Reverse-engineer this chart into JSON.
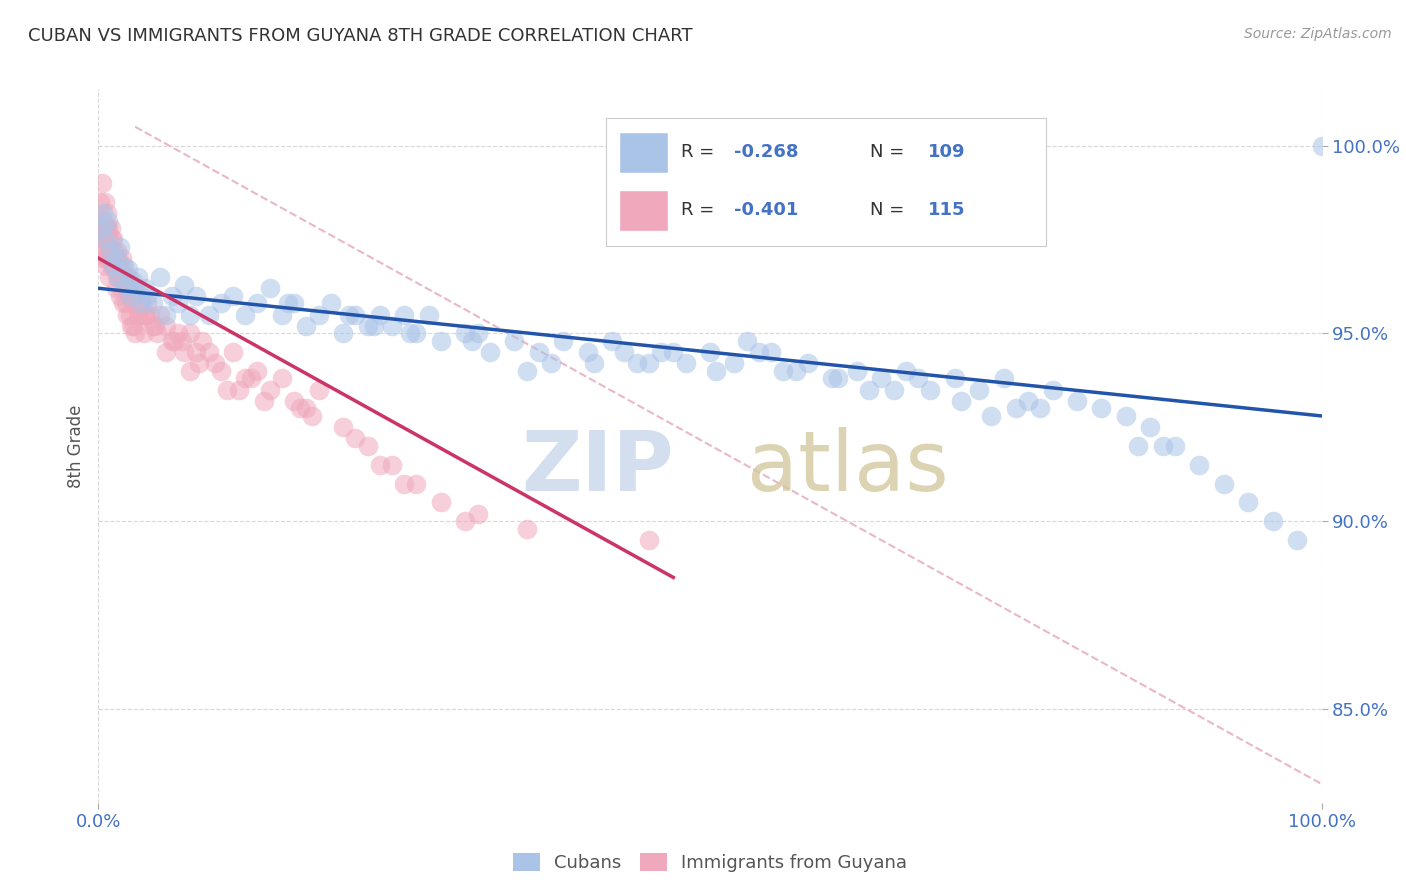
{
  "title": "CUBAN VS IMMIGRANTS FROM GUYANA 8TH GRADE CORRELATION CHART",
  "source": "Source: ZipAtlas.com",
  "ylabel": "8th Grade",
  "ytick_labels": [
    "85.0%",
    "90.0%",
    "95.0%",
    "100.0%"
  ],
  "ytick_values": [
    85.0,
    90.0,
    95.0,
    100.0
  ],
  "legend_label_blue": "Cubans",
  "legend_label_pink": "Immigrants from Guyana",
  "blue_color": "#aac4e8",
  "pink_color": "#f0a8bc",
  "blue_line_color": "#2255aa",
  "pink_line_color": "#cc3366",
  "diag_line_color": "#e8b0c0",
  "xlim": [
    0.0,
    100.0
  ],
  "ylim": [
    82.5,
    101.5
  ],
  "blue_trend_x": [
    0.0,
    100.0
  ],
  "blue_trend_y": [
    96.2,
    92.8
  ],
  "pink_trend_x": [
    0.0,
    47.0
  ],
  "pink_trend_y": [
    97.0,
    88.5
  ],
  "diag_trend_x": [
    3.0,
    100.0
  ],
  "diag_trend_y": [
    100.5,
    83.0
  ],
  "blue_scatter_x": [
    0.3,
    0.4,
    0.6,
    0.8,
    1.0,
    1.2,
    1.4,
    1.6,
    1.8,
    2.0,
    2.2,
    2.4,
    2.6,
    2.8,
    3.0,
    3.2,
    3.5,
    3.8,
    4.0,
    4.5,
    5.0,
    5.5,
    6.0,
    6.5,
    7.0,
    7.5,
    8.0,
    9.0,
    10.0,
    11.0,
    12.0,
    13.0,
    14.0,
    15.0,
    16.0,
    17.0,
    18.0,
    19.0,
    20.0,
    21.0,
    22.0,
    23.0,
    24.0,
    25.0,
    26.0,
    28.0,
    30.0,
    32.0,
    34.0,
    36.0,
    38.0,
    40.0,
    42.0,
    44.0,
    46.0,
    48.0,
    50.0,
    52.0,
    54.0,
    56.0,
    58.0,
    60.0,
    62.0,
    64.0,
    66.0,
    68.0,
    70.0,
    72.0,
    74.0,
    76.0,
    78.0,
    80.0,
    82.0,
    84.0,
    86.0,
    88.0,
    90.0,
    92.0,
    94.0,
    96.0,
    98.0,
    100.0,
    27.0,
    31.0,
    37.0,
    43.0,
    55.0,
    65.0,
    75.0,
    85.0,
    15.5,
    22.5,
    30.5,
    40.5,
    50.5,
    60.5,
    70.5,
    35.0,
    45.0,
    53.0,
    63.0,
    73.0,
    20.5,
    25.5,
    47.0,
    57.0,
    67.0,
    77.0,
    87.0
  ],
  "blue_scatter_y": [
    97.8,
    98.2,
    97.5,
    98.0,
    97.2,
    96.8,
    97.0,
    96.5,
    97.3,
    96.8,
    96.3,
    96.7,
    96.0,
    96.4,
    96.2,
    96.5,
    95.8,
    96.2,
    96.0,
    95.8,
    96.5,
    95.5,
    96.0,
    95.8,
    96.3,
    95.5,
    96.0,
    95.5,
    95.8,
    96.0,
    95.5,
    95.8,
    96.2,
    95.5,
    95.8,
    95.2,
    95.5,
    95.8,
    95.0,
    95.5,
    95.2,
    95.5,
    95.2,
    95.5,
    95.0,
    94.8,
    95.0,
    94.5,
    94.8,
    94.5,
    94.8,
    94.5,
    94.8,
    94.2,
    94.5,
    94.2,
    94.5,
    94.2,
    94.5,
    94.0,
    94.2,
    93.8,
    94.0,
    93.8,
    94.0,
    93.5,
    93.8,
    93.5,
    93.8,
    93.2,
    93.5,
    93.2,
    93.0,
    92.8,
    92.5,
    92.0,
    91.5,
    91.0,
    90.5,
    90.0,
    89.5,
    100.0,
    95.5,
    95.0,
    94.2,
    94.5,
    94.5,
    93.5,
    93.0,
    92.0,
    95.8,
    95.2,
    94.8,
    94.2,
    94.0,
    93.8,
    93.2,
    94.0,
    94.2,
    94.8,
    93.5,
    92.8,
    95.5,
    95.0,
    94.5,
    94.0,
    93.8,
    93.0,
    92.0
  ],
  "pink_scatter_x": [
    0.1,
    0.2,
    0.3,
    0.3,
    0.4,
    0.4,
    0.5,
    0.5,
    0.6,
    0.7,
    0.7,
    0.8,
    0.8,
    0.9,
    1.0,
    1.0,
    1.1,
    1.2,
    1.2,
    1.3,
    1.4,
    1.5,
    1.5,
    1.6,
    1.7,
    1.8,
    1.9,
    2.0,
    2.1,
    2.2,
    2.3,
    2.4,
    2.5,
    2.6,
    2.7,
    2.8,
    3.0,
    3.2,
    3.5,
    3.8,
    4.0,
    4.5,
    5.0,
    5.5,
    6.0,
    6.5,
    7.0,
    7.5,
    8.0,
    8.5,
    9.0,
    10.0,
    11.0,
    12.0,
    13.0,
    14.0,
    15.0,
    16.0,
    17.0,
    18.0,
    20.0,
    22.0,
    24.0,
    26.0,
    28.0,
    30.0,
    35.0,
    45.0,
    0.6,
    0.9,
    1.3,
    1.6,
    2.1,
    2.9,
    4.2,
    6.8,
    9.5,
    12.5,
    16.5,
    21.0,
    25.0,
    31.0,
    0.35,
    0.55,
    0.75,
    1.05,
    1.35,
    1.65,
    1.95,
    2.25,
    2.55,
    2.85,
    3.3,
    3.7,
    4.8,
    0.45,
    0.65,
    0.85,
    1.15,
    1.45,
    1.75,
    2.05,
    2.35,
    2.65,
    2.95,
    5.5,
    7.5,
    10.5,
    13.5,
    17.5,
    3.9,
    4.6,
    6.2,
    8.2,
    11.5,
    23.0
  ],
  "pink_scatter_y": [
    98.5,
    98.0,
    97.5,
    99.0,
    98.0,
    97.0,
    97.5,
    98.5,
    97.0,
    97.8,
    98.2,
    97.0,
    97.8,
    97.5,
    97.0,
    97.8,
    97.5,
    96.8,
    97.5,
    97.2,
    97.0,
    97.2,
    96.5,
    97.0,
    96.8,
    96.5,
    97.0,
    96.5,
    96.8,
    96.5,
    96.2,
    96.5,
    96.0,
    96.2,
    96.0,
    95.8,
    96.0,
    95.5,
    95.8,
    95.5,
    95.8,
    95.2,
    95.5,
    95.2,
    94.8,
    95.0,
    94.5,
    95.0,
    94.5,
    94.8,
    94.5,
    94.0,
    94.5,
    93.8,
    94.0,
    93.5,
    93.8,
    93.2,
    93.0,
    93.5,
    92.5,
    92.0,
    91.5,
    91.0,
    90.5,
    90.0,
    89.8,
    89.5,
    97.8,
    97.2,
    97.0,
    96.8,
    96.5,
    96.2,
    95.5,
    94.8,
    94.2,
    93.8,
    93.0,
    92.2,
    91.0,
    90.2,
    97.5,
    97.8,
    97.2,
    97.0,
    96.8,
    96.5,
    96.2,
    95.8,
    95.5,
    95.2,
    95.5,
    95.0,
    95.0,
    97.2,
    96.8,
    96.5,
    96.8,
    96.2,
    96.0,
    95.8,
    95.5,
    95.2,
    95.0,
    94.5,
    94.0,
    93.5,
    93.2,
    92.8,
    95.5,
    95.2,
    94.8,
    94.2,
    93.5,
    91.5
  ]
}
